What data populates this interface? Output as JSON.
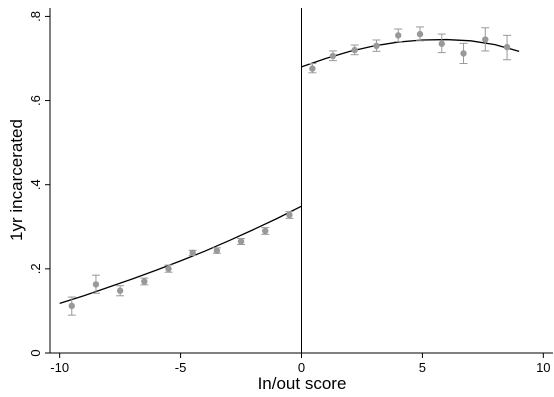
{
  "chart_data": {
    "type": "scatter",
    "title": "",
    "xlabel": "In/out score",
    "ylabel": "1yr incarcerated",
    "xlim": [
      -10.4,
      10.4
    ],
    "ylim": [
      0,
      0.82
    ],
    "grid": false,
    "x_ticks": [
      {
        "value": -10,
        "label": "-10"
      },
      {
        "value": -5,
        "label": "-5"
      },
      {
        "value": 0,
        "label": "0"
      },
      {
        "value": 5,
        "label": "5"
      },
      {
        "value": 10,
        "label": "10"
      }
    ],
    "y_ticks": [
      {
        "value": 0,
        "label": "0"
      },
      {
        "value": 0.2,
        "label": ".2"
      },
      {
        "value": 0.4,
        "label": ".4"
      },
      {
        "value": 0.6,
        "label": ".6"
      },
      {
        "value": 0.8,
        "label": ".8"
      }
    ],
    "cutoff": 0,
    "colors": {
      "points": "#999999",
      "error_bars": "#999999",
      "fit_line": "#000000",
      "cutoff_line": "#000000",
      "axis": "#000000"
    },
    "points": [
      {
        "x": -9.5,
        "y": 0.112,
        "lo": 0.09,
        "hi": 0.133
      },
      {
        "x": -8.5,
        "y": 0.163,
        "lo": 0.142,
        "hi": 0.185
      },
      {
        "x": -7.5,
        "y": 0.148,
        "lo": 0.136,
        "hi": 0.16
      },
      {
        "x": -6.5,
        "y": 0.17,
        "lo": 0.162,
        "hi": 0.178
      },
      {
        "x": -5.5,
        "y": 0.2,
        "lo": 0.192,
        "hi": 0.209
      },
      {
        "x": -4.5,
        "y": 0.238,
        "lo": 0.232,
        "hi": 0.244
      },
      {
        "x": -3.5,
        "y": 0.243,
        "lo": 0.237,
        "hi": 0.25
      },
      {
        "x": -2.5,
        "y": 0.265,
        "lo": 0.258,
        "hi": 0.272
      },
      {
        "x": -1.5,
        "y": 0.29,
        "lo": 0.282,
        "hi": 0.298
      },
      {
        "x": -0.5,
        "y": 0.328,
        "lo": 0.32,
        "hi": 0.336
      },
      {
        "x": 0.45,
        "y": 0.676,
        "lo": 0.666,
        "hi": 0.688
      },
      {
        "x": 1.3,
        "y": 0.706,
        "lo": 0.695,
        "hi": 0.718
      },
      {
        "x": 2.2,
        "y": 0.72,
        "lo": 0.709,
        "hi": 0.732
      },
      {
        "x": 3.1,
        "y": 0.73,
        "lo": 0.717,
        "hi": 0.744
      },
      {
        "x": 4.0,
        "y": 0.755,
        "lo": 0.74,
        "hi": 0.77
      },
      {
        "x": 4.9,
        "y": 0.758,
        "lo": 0.742,
        "hi": 0.775
      },
      {
        "x": 5.8,
        "y": 0.735,
        "lo": 0.714,
        "hi": 0.758
      },
      {
        "x": 6.7,
        "y": 0.712,
        "lo": 0.688,
        "hi": 0.736
      },
      {
        "x": 7.6,
        "y": 0.745,
        "lo": 0.718,
        "hi": 0.773
      },
      {
        "x": 8.5,
        "y": 0.727,
        "lo": 0.697,
        "hi": 0.755
      }
    ],
    "fit": [
      {
        "segment": "left",
        "x": [
          -10.0,
          -9.0,
          -8.0,
          -7.0,
          -6.0,
          -5.0,
          -4.0,
          -3.0,
          -2.0,
          -1.0,
          0.0
        ],
        "y": [
          0.118,
          0.136,
          0.156,
          0.176,
          0.197,
          0.219,
          0.242,
          0.267,
          0.293,
          0.32,
          0.349
        ]
      },
      {
        "segment": "right",
        "x": [
          0.0,
          1.0,
          2.0,
          3.0,
          4.0,
          5.0,
          6.0,
          7.0,
          8.0,
          9.0
        ],
        "y": [
          0.68,
          0.7,
          0.717,
          0.73,
          0.739,
          0.744,
          0.745,
          0.742,
          0.733,
          0.717
        ]
      }
    ]
  }
}
